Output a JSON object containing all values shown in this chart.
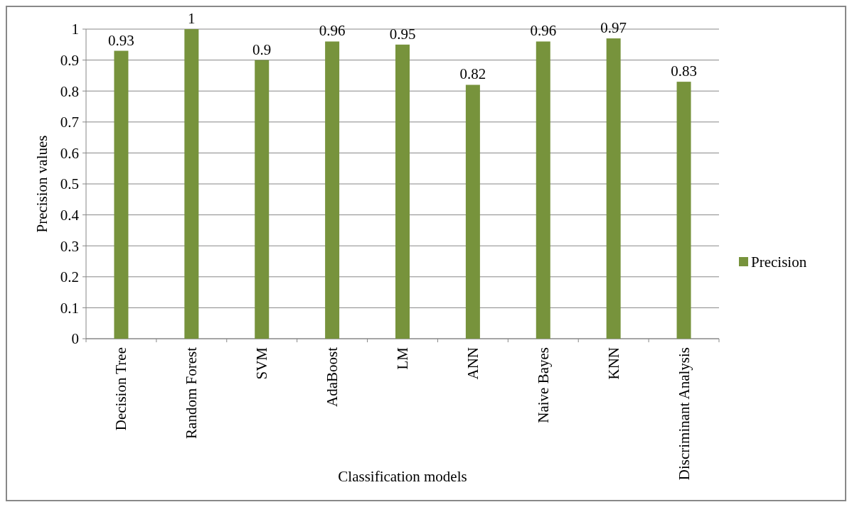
{
  "chart_data": {
    "type": "bar",
    "xlabel": "Classification models",
    "ylabel": "Precision values",
    "categories": [
      "Decision Tree",
      "Random Forest",
      "SVM",
      "AdaBoost",
      "LM",
      "ANN",
      "Naive Bayes",
      "KNN",
      "Discriminant Analysis"
    ],
    "series": [
      {
        "name": "Precision",
        "color": "#77933c",
        "values": [
          0.93,
          1,
          0.9,
          0.96,
          0.95,
          0.82,
          0.96,
          0.97,
          0.83
        ]
      }
    ],
    "ylim": [
      0,
      1
    ],
    "yticks": [
      0,
      0.1,
      0.2,
      0.3,
      0.4,
      0.5,
      0.6,
      0.7,
      0.8,
      0.9,
      1
    ],
    "grid": "y",
    "legend": "right",
    "data_labels": true
  }
}
